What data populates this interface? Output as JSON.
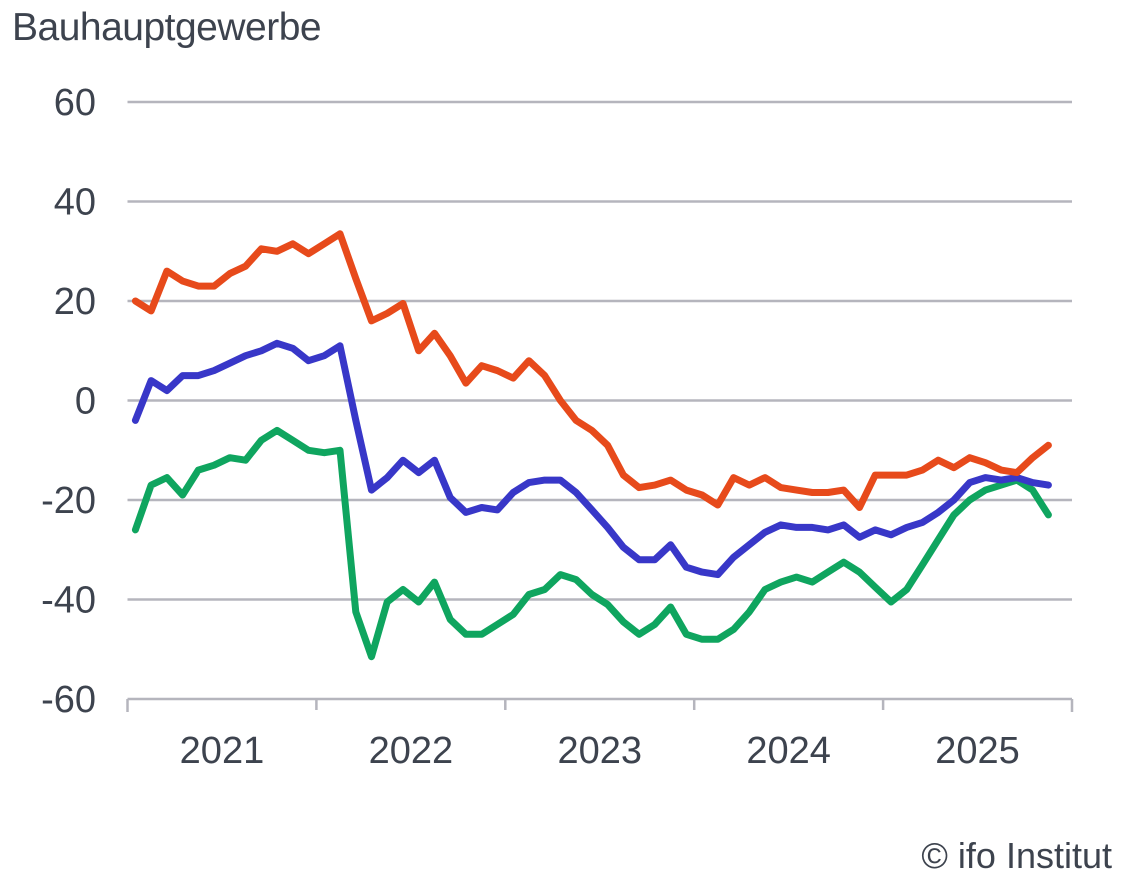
{
  "title": "Bauhauptgewerbe",
  "attribution": "© ifo Institut",
  "colors": {
    "orange_line": "#e74a1b",
    "blue_line": "#3837c8",
    "green_line": "#0fa55f",
    "gridline": "#b5b5bd",
    "axis": "#b5b5bd",
    "text": "#3d434e",
    "background": "#ffffff"
  },
  "chart_data": {
    "type": "line",
    "title": "Bauhauptgewerbe",
    "xlabel": "",
    "ylabel": "",
    "frequency": "monthly",
    "x_start": "2021-01",
    "x_end": "2025-11",
    "x_tick_labels": [
      "2021",
      "2022",
      "2023",
      "2024",
      "2025"
    ],
    "y_ticks": [
      60,
      40,
      20,
      0,
      -20,
      -40,
      -60
    ],
    "ylim": [
      -60,
      60
    ],
    "grid": "horizontal",
    "legend": "none",
    "series": [
      {
        "name": "orange",
        "color": "#e74a1b",
        "values": [
          20,
          18,
          26,
          24,
          23,
          23,
          25.5,
          27,
          30.5,
          30,
          31.5,
          29.5,
          31.5,
          33.5,
          24.5,
          16,
          17.5,
          19.5,
          10,
          13.5,
          9,
          3.5,
          7,
          6,
          4.5,
          8,
          5,
          0,
          -4,
          -6,
          -9,
          -15,
          -17.5,
          -17,
          -16,
          -18,
          -19,
          -21,
          -15.5,
          -17,
          -15.5,
          -17.5,
          -18,
          -18.5,
          -18.5,
          -18,
          -21.5,
          -15,
          -15,
          -15,
          -14,
          -12,
          -13.5,
          -11.5,
          -12.5,
          -14,
          -14.5,
          -11.5,
          -9
        ]
      },
      {
        "name": "blue",
        "color": "#3837c8",
        "values": [
          -4,
          4,
          2,
          5,
          5,
          6,
          7.5,
          9,
          10,
          11.5,
          10.5,
          8,
          9,
          11,
          -4,
          -18,
          -15.5,
          -12,
          -14.5,
          -12,
          -19.5,
          -22.5,
          -21.5,
          -22,
          -18.5,
          -16.5,
          -16,
          -16,
          -18.5,
          -22,
          -25.5,
          -29.5,
          -32,
          -32,
          -29,
          -33.5,
          -34.5,
          -35,
          -31.5,
          -29,
          -26.5,
          -25,
          -25.5,
          -25.5,
          -26,
          -25,
          -27.5,
          -26,
          -27,
          -25.5,
          -24.5,
          -22.5,
          -20,
          -16.5,
          -15.5,
          -16,
          -15.5,
          -16.5,
          -17
        ]
      },
      {
        "name": "green",
        "color": "#0fa55f",
        "values": [
          -26,
          -17,
          -15.5,
          -19,
          -14,
          -13,
          -11.5,
          -12,
          -8,
          -6,
          -8,
          -10,
          -10.5,
          -10,
          -42.5,
          -51.5,
          -40.5,
          -38,
          -40.5,
          -36.5,
          -44,
          -47,
          -47,
          -45,
          -43,
          -39,
          -38,
          -35,
          -36,
          -39,
          -41,
          -44.5,
          -47,
          -45,
          -41.5,
          -47,
          -48,
          -48,
          -46,
          -42.5,
          -38,
          -36.5,
          -35.5,
          -36.5,
          -34.5,
          -32.5,
          -34.5,
          -37.5,
          -40.5,
          -38,
          -33,
          -28,
          -23,
          -20,
          -18,
          -17,
          -16,
          -18,
          -23
        ]
      }
    ]
  }
}
